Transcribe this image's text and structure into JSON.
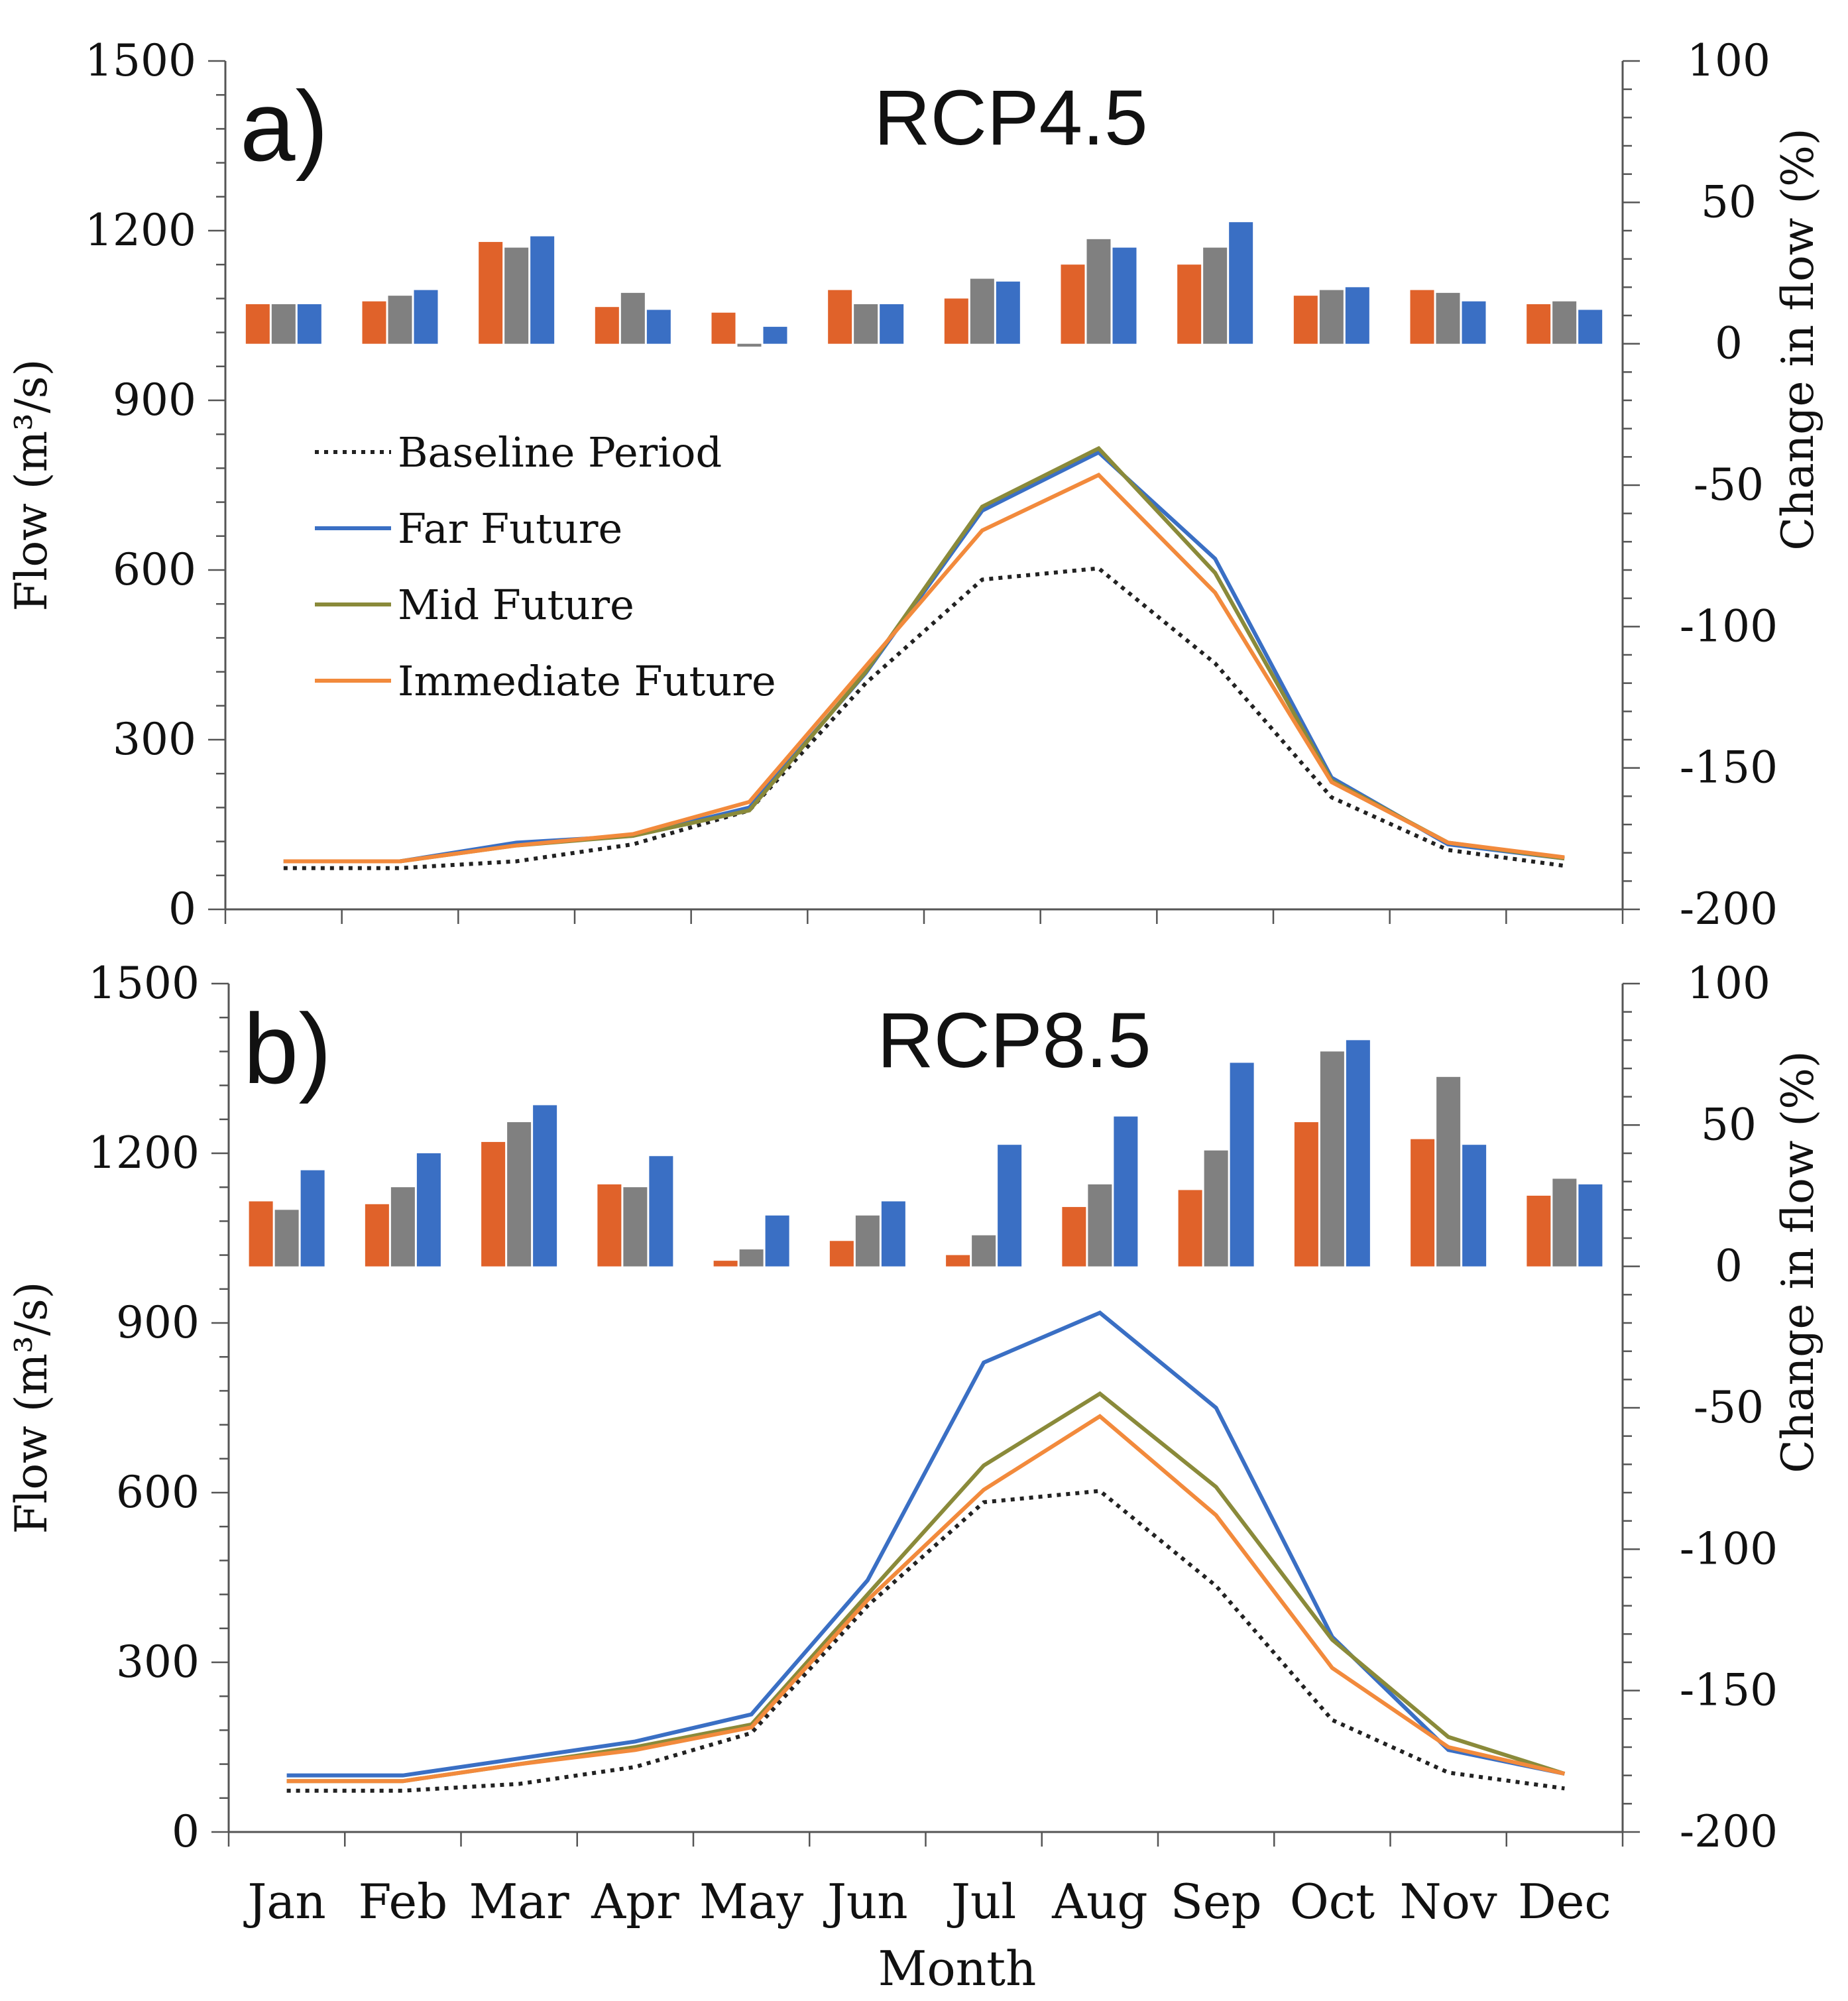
{
  "chart_data": [
    {
      "type": "bar+line",
      "panel_label": "a)",
      "title": "RCP4.5",
      "xlabel": "",
      "ylabel_left": "Flow (m³/s)",
      "ylabel_right": "Change in flow (%)",
      "ylim_left": [
        0,
        1500
      ],
      "ylim_right": [
        -200,
        100
      ],
      "yticks_left": [
        "1500",
        "1200",
        "900",
        "600",
        "300",
        "0"
      ],
      "yticks_right": [
        "100",
        "50",
        "0",
        "-50",
        "-100",
        "-150",
        "-200"
      ],
      "categories": [
        "Jan",
        "Feb",
        "Mar",
        "Apr",
        "May",
        "Jun",
        "Jul",
        "Aug",
        "Sep",
        "Oct",
        "Nov",
        "Dec"
      ],
      "bar_series": [
        {
          "name": "Immediate Future",
          "color": "#e0622a",
          "values": [
            14,
            15,
            36,
            13,
            11,
            19,
            16,
            28,
            28,
            17,
            19,
            14
          ]
        },
        {
          "name": "Mid Future",
          "color": "#808080",
          "values": [
            14,
            17,
            34,
            18,
            -1,
            14,
            23,
            37,
            34,
            19,
            18,
            15
          ]
        },
        {
          "name": "Far Future",
          "color": "#3a6fc4",
          "values": [
            14,
            19,
            38,
            12,
            6,
            14,
            22,
            34,
            43,
            20,
            15,
            12
          ]
        }
      ],
      "line_series": [
        {
          "name": "Baseline Period",
          "color": "#222222",
          "style": "dotted",
          "values": [
            73,
            73,
            85,
            115,
            175,
            400,
            583,
            603,
            435,
            198,
            105,
            77
          ]
        },
        {
          "name": "Far Future",
          "color": "#3a6fc4",
          "style": "solid",
          "values": [
            85,
            85,
            118,
            130,
            180,
            418,
            705,
            808,
            620,
            233,
            115,
            90
          ]
        },
        {
          "name": "Mid Future",
          "color": "#8a8a3a",
          "style": "solid",
          "values": [
            85,
            85,
            113,
            130,
            175,
            420,
            712,
            815,
            595,
            228,
            118,
            90
          ]
        },
        {
          "name": "Immediate Future",
          "color": "#f28a3c",
          "style": "solid",
          "values": [
            85,
            85,
            113,
            133,
            190,
            430,
            670,
            768,
            560,
            225,
            118,
            92
          ]
        }
      ],
      "legend": {
        "placement": "center-left",
        "items": [
          "Baseline Period",
          "Far Future",
          "Mid Future",
          "Immediate Future"
        ]
      }
    },
    {
      "type": "bar+line",
      "panel_label": "b)",
      "title": "RCP8.5",
      "xlabel": "Month",
      "ylabel_left": "Flow (m³/s)",
      "ylabel_right": "Change in flow (%)",
      "ylim_left": [
        0,
        1500
      ],
      "ylim_right": [
        -200,
        100
      ],
      "yticks_left": [
        "1500",
        "1200",
        "900",
        "600",
        "300",
        "0"
      ],
      "yticks_right": [
        "100",
        "50",
        "0",
        "-50",
        "-100",
        "-150",
        "-200"
      ],
      "categories": [
        "Jan",
        "Feb",
        "Mar",
        "Apr",
        "May",
        "Jun",
        "Jul",
        "Aug",
        "Sep",
        "Oct",
        "Nov",
        "Dec"
      ],
      "bar_series": [
        {
          "name": "Immediate Future",
          "color": "#e0622a",
          "values": [
            23,
            22,
            44,
            29,
            2,
            9,
            4,
            21,
            27,
            51,
            45,
            25
          ]
        },
        {
          "name": "Mid Future",
          "color": "#808080",
          "values": [
            20,
            28,
            51,
            28,
            6,
            18,
            11,
            29,
            41,
            76,
            67,
            31
          ]
        },
        {
          "name": "Far Future",
          "color": "#3a6fc4",
          "values": [
            34,
            40,
            57,
            39,
            18,
            23,
            43,
            53,
            72,
            80,
            43,
            29
          ]
        }
      ],
      "line_series": [
        {
          "name": "Baseline Period",
          "color": "#222222",
          "style": "dotted",
          "values": [
            73,
            73,
            85,
            115,
            175,
            400,
            583,
            603,
            435,
            198,
            105,
            77
          ]
        },
        {
          "name": "Far Future",
          "color": "#3a6fc4",
          "style": "solid",
          "values": [
            100,
            100,
            130,
            160,
            208,
            445,
            830,
            918,
            750,
            345,
            145,
            103
          ]
        },
        {
          "name": "Mid Future",
          "color": "#8a8a3a",
          "style": "solid",
          "values": [
            90,
            90,
            120,
            150,
            190,
            420,
            648,
            775,
            610,
            340,
            168,
            103
          ]
        },
        {
          "name": "Immediate Future",
          "color": "#f28a3c",
          "style": "solid",
          "values": [
            90,
            90,
            120,
            145,
            185,
            410,
            605,
            735,
            560,
            290,
            150,
            103
          ]
        }
      ]
    }
  ]
}
